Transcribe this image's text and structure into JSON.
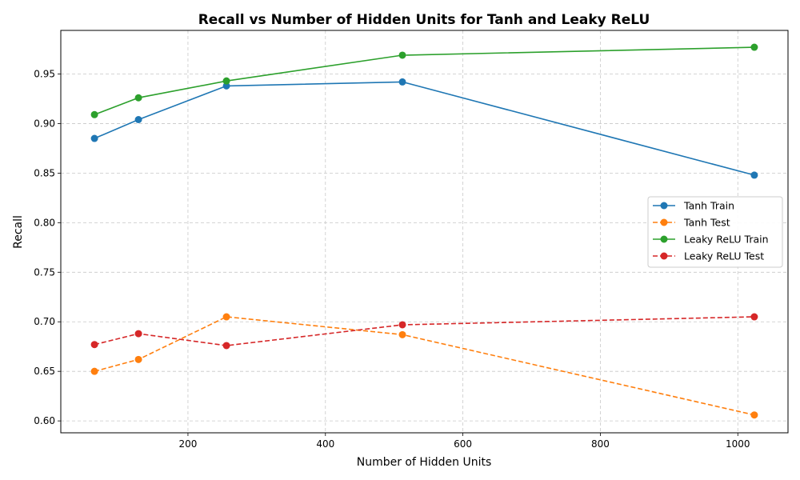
{
  "chart_data": {
    "type": "line",
    "title": "Recall vs Number of Hidden Units for Tanh and Leaky ReLU",
    "xlabel": "Number of Hidden Units",
    "ylabel": "Recall",
    "x": [
      64,
      128,
      256,
      512,
      1024
    ],
    "xlim": [
      15,
      1073
    ],
    "ylim": [
      0.588,
      0.994
    ],
    "xticks": [
      200,
      400,
      600,
      800,
      1000
    ],
    "yticks": [
      0.6,
      0.65,
      0.7,
      0.75,
      0.8,
      0.85,
      0.9,
      0.95
    ],
    "grid": true,
    "legend_position": "center-right",
    "series": [
      {
        "name": "Tanh Train",
        "values": [
          0.885,
          0.904,
          0.938,
          0.942,
          0.848
        ],
        "color": "#1f77b4",
        "dashed": false
      },
      {
        "name": "Tanh Test",
        "values": [
          0.65,
          0.662,
          0.705,
          0.687,
          0.606
        ],
        "color": "#ff7f0e",
        "dashed": true
      },
      {
        "name": "Leaky ReLU Train",
        "values": [
          0.909,
          0.926,
          0.943,
          0.969,
          0.977
        ],
        "color": "#2ca02c",
        "dashed": false
      },
      {
        "name": "Leaky ReLU Test",
        "values": [
          0.677,
          0.688,
          0.676,
          0.697,
          0.705
        ],
        "color": "#d62728",
        "dashed": true
      }
    ]
  }
}
